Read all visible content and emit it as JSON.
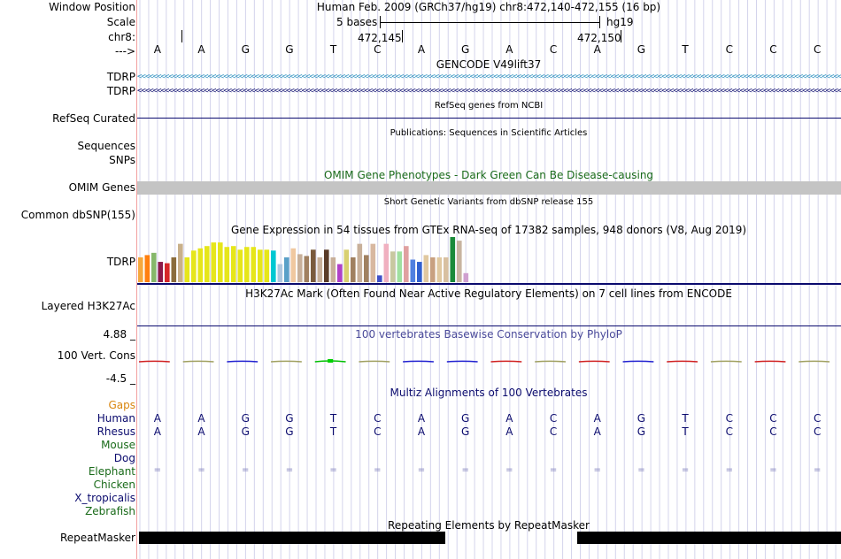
{
  "header": {
    "window_position_label": "Window Position",
    "window_position_value": "Human Feb. 2009 (GRCh37/hg19)    chr8:472,140-472,155 (16 bp)",
    "scale_label": "Scale",
    "scale_value": "5 bases",
    "assembly": "hg19",
    "chrom_label": "chr8:",
    "pos1": "472,145",
    "pos2": "472,150",
    "strand_label": "--->"
  },
  "bases": [
    "A",
    "A",
    "G",
    "G",
    "T",
    "C",
    "A",
    "G",
    "A",
    "C",
    "A",
    "G",
    "T",
    "C",
    "C",
    "C"
  ],
  "tracks": {
    "gencode": {
      "title": "GENCODE V49lift37",
      "gene1": "TDRP",
      "gene2": "TDRP",
      "color1": "#2a8fbf",
      "color2": "#0b0b6e"
    },
    "refseq": {
      "title": "RefSeq genes from NCBI",
      "label": "RefSeq Curated",
      "color": "#0b0b6e"
    },
    "pubs": {
      "title": "Publications: Sequences in Scientific Articles",
      "label": "Sequences"
    },
    "snps": {
      "label": "SNPs"
    },
    "omim": {
      "title": "OMIM Gene Phenotypes - Dark Green Can Be Disease-causing",
      "label": "OMIM Genes",
      "color": "#1a6b1a"
    },
    "dbsnp": {
      "title": "Short Genetic Variants from dbSNP release 155",
      "label": "Common dbSNP(155)"
    },
    "gtex": {
      "title": "Gene Expression in 54 tissues from GTEx RNA-seq of 17382 samples, 948 donors (V8, Aug 2019)",
      "label": "TDRP"
    },
    "h3k27ac": {
      "title": "H3K27Ac Mark (Often Found Near Active Regulatory Elements) on 7 cell lines from ENCODE",
      "label": "Layered H3K27Ac"
    },
    "phylop": {
      "title": "100 vertebrates Basewise Conservation by PhyloP",
      "label": "100 Vert. Cons",
      "max": "4.88 _",
      "min": "-4.5 _",
      "color": "#4a4a9a",
      "min_color": "#8a1a1a"
    },
    "multiz": {
      "title": "Multiz Alignments of 100 Vertebrates"
    },
    "repeatmasker": {
      "title": "Repeating Elements by RepeatMasker",
      "label": "RepeatMasker"
    }
  },
  "species": [
    {
      "name": "Gaps",
      "color": "#d9860e",
      "seq": ""
    },
    {
      "name": "Human",
      "color": "#0b0b6e",
      "seq": "AAGGTCAGACAGTCCC"
    },
    {
      "name": "Rhesus",
      "color": "#0b0b6e",
      "seq": "AAGGTCAGACAGTCCC"
    },
    {
      "name": "Mouse",
      "color": "#1a6b1a",
      "seq": ""
    },
    {
      "name": "Dog",
      "color": "#0b0b6e",
      "seq": ""
    },
    {
      "name": "Elephant",
      "color": "#1a6b1a",
      "seq": "================"
    },
    {
      "name": "Chicken",
      "color": "#1a6b1a",
      "seq": ""
    },
    {
      "name": "X_tropicalis",
      "color": "#0b0b6e",
      "seq": ""
    },
    {
      "name": "Zebrafish",
      "color": "#1a6b1a",
      "seq": ""
    }
  ],
  "gtex_values": [
    0.55,
    0.6,
    0.65,
    0.45,
    0.42,
    0.55,
    0.85,
    0.55,
    0.7,
    0.75,
    0.8,
    0.88,
    0.88,
    0.78,
    0.8,
    0.72,
    0.78,
    0.78,
    0.72,
    0.72,
    0.7,
    0.4,
    0.55,
    0.75,
    0.62,
    0.58,
    0.72,
    0.55,
    0.72,
    0.55,
    0.4,
    0.72,
    0.55,
    0.85,
    0.6,
    0.85,
    0.15,
    0.85,
    0.68,
    0.68,
    0.8,
    0.5,
    0.45,
    0.6,
    0.55,
    0.55,
    0.55,
    1.0,
    0.92,
    0.2
  ],
  "gtex_colors": [
    "#f5a83c",
    "#ff7f0e",
    "#86b86a",
    "#8c1a4a",
    "#d62728",
    "#8b6c3c",
    "#c9b08a",
    "#e6e61a",
    "#e6e61a",
    "#e6e61a",
    "#e6e61a",
    "#e6e61a",
    "#e6e61a",
    "#e6e61a",
    "#e6e61a",
    "#e6e61a",
    "#e6e61a",
    "#e6e61a",
    "#e6e61a",
    "#e6e61a",
    "#00c8d2",
    "#b0c8e0",
    "#5aa0c8",
    "#f0c8a0",
    "#c8b09a",
    "#a08060",
    "#7a5a3c",
    "#c8b09a",
    "#5a3c28",
    "#c8b09a",
    "#b040c8",
    "#d8d070",
    "#a08060",
    "#c8b09a",
    "#a08060",
    "#d8b8a0",
    "#4050c8",
    "#f0b0c0",
    "#c8c8a0",
    "#a0e0a0",
    "#e0a0a0",
    "#5080e0",
    "#3060d0",
    "#e0c8a0",
    "#c8a080",
    "#e0c8a0",
    "#d8c0a0",
    "#1a8a3a",
    "#c8b4a0",
    "#d0a0d0"
  ],
  "phylop_values": [
    0.35,
    0.35,
    -0.4,
    0.1,
    0.9,
    0.6,
    -0.2,
    -0.4,
    0.25,
    0.05,
    0.1,
    -0.45,
    0.5,
    0.1,
    0.15,
    0.15
  ]
}
